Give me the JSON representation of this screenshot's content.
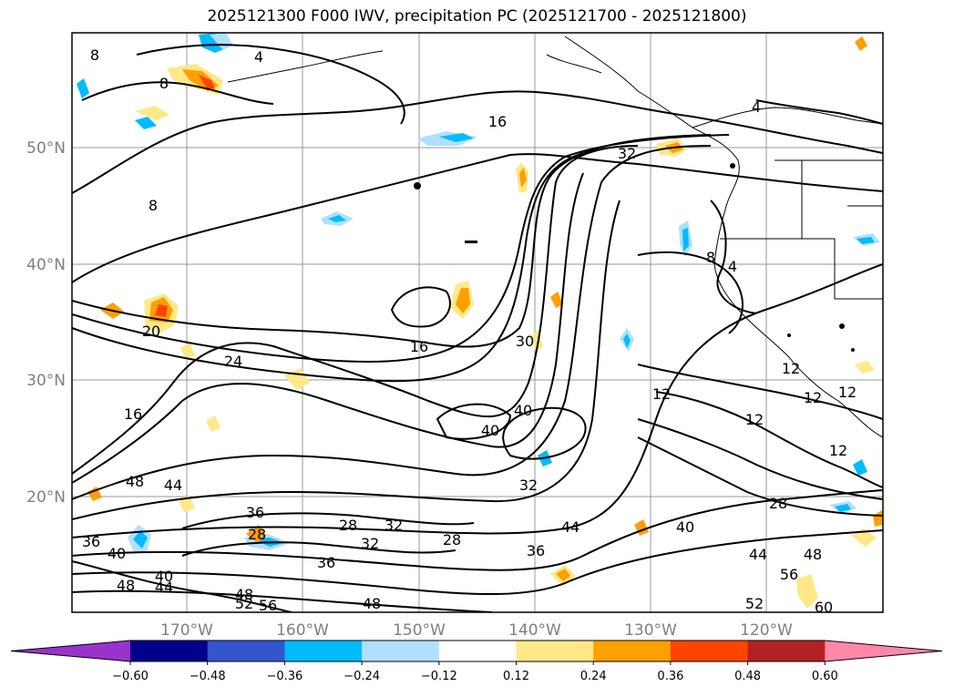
{
  "title": "2025121300 F000 IWV, precipitation PC (2025121700 - 2025121800)",
  "axes": {
    "lat_labels": [
      "50°N",
      "40°N",
      "30°N",
      "20°N"
    ],
    "lon_labels": [
      "170°W",
      "160°W",
      "150°W",
      "140°W",
      "130°W",
      "120°W"
    ]
  },
  "contour_labels": [
    {
      "text": "8"
    },
    {
      "text": "8"
    },
    {
      "text": "4"
    },
    {
      "text": "16"
    },
    {
      "text": "4"
    },
    {
      "text": "32"
    },
    {
      "text": "8"
    },
    {
      "text": "8"
    },
    {
      "text": "4"
    },
    {
      "text": "20"
    },
    {
      "text": "24"
    },
    {
      "text": "16"
    },
    {
      "text": "30"
    },
    {
      "text": "16"
    },
    {
      "text": "40"
    },
    {
      "text": "40"
    },
    {
      "text": "12"
    },
    {
      "text": "12"
    },
    {
      "text": "12"
    },
    {
      "text": "12"
    },
    {
      "text": "12"
    },
    {
      "text": "12"
    },
    {
      "text": "48"
    },
    {
      "text": "44"
    },
    {
      "text": "32"
    },
    {
      "text": "36"
    },
    {
      "text": "28"
    },
    {
      "text": "32"
    },
    {
      "text": "28"
    },
    {
      "text": "32"
    },
    {
      "text": "28"
    },
    {
      "text": "36"
    },
    {
      "text": "44"
    },
    {
      "text": "40"
    },
    {
      "text": "28"
    },
    {
      "text": "36"
    },
    {
      "text": "40"
    },
    {
      "text": "44"
    },
    {
      "text": "48"
    },
    {
      "text": "36"
    },
    {
      "text": "48"
    },
    {
      "text": "40"
    },
    {
      "text": "44"
    },
    {
      "text": "48"
    },
    {
      "text": "52"
    },
    {
      "text": "56"
    },
    {
      "text": "48"
    },
    {
      "text": "56"
    },
    {
      "text": "52"
    },
    {
      "text": "60"
    }
  ],
  "colorbar": {
    "colors": [
      "#9933cc",
      "#00008b",
      "#3355cc",
      "#00bbff",
      "#b0e0ff",
      "#ffffff",
      "#ffe888",
      "#ff9f00",
      "#ff4400",
      "#b22222",
      "#ff88aa"
    ],
    "ticks": [
      "−0.60",
      "−0.48",
      "−0.36",
      "−0.24",
      "−0.12",
      "0.12",
      "0.24",
      "0.36",
      "0.48",
      "0.60"
    ]
  },
  "colors": {
    "contour": "#000000",
    "grid": "#999999",
    "coast": "#000000"
  }
}
